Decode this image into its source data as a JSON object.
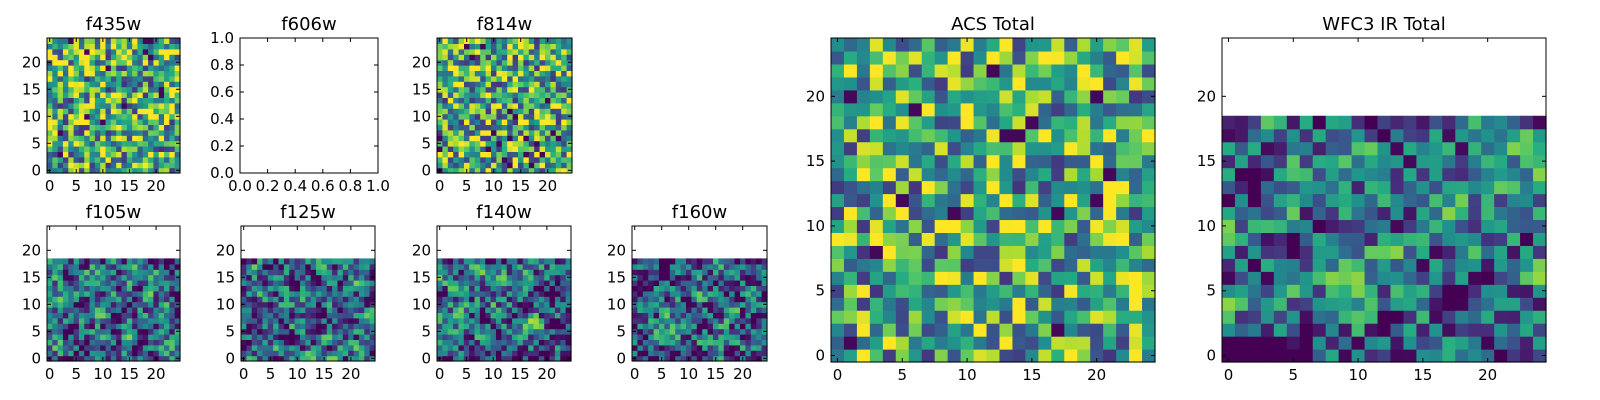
{
  "figure": {
    "colormap": "viridis",
    "panels": [
      {
        "id": "f435w",
        "title": "f435w"
      },
      {
        "id": "f606w",
        "title": "f606w"
      },
      {
        "id": "f814w",
        "title": "f814w"
      },
      {
        "id": "f105w",
        "title": "f105w"
      },
      {
        "id": "f125w",
        "title": "f125w"
      },
      {
        "id": "f140w",
        "title": "f140w"
      },
      {
        "id": "f160w",
        "title": "f160w"
      },
      {
        "id": "acs_total",
        "title": "ACS Total"
      },
      {
        "id": "wfc3ir_total",
        "title": "WFC3 IR Total"
      }
    ]
  },
  "chart_data": [
    {
      "type": "heatmap",
      "title": "f435w",
      "xticks": [
        "0",
        "5",
        "10",
        "15",
        "20"
      ],
      "yticks": [
        "0",
        "5",
        "10",
        "15",
        "20"
      ],
      "xlim": [
        -0.5,
        24.5
      ],
      "ylim": [
        -0.5,
        24.5
      ],
      "rows": 25,
      "cols": 25,
      "filled_rows": 25,
      "pattern": "noise",
      "seed": 11,
      "colormap": "viridis"
    },
    {
      "type": "heatmap",
      "title": "f606w",
      "xticks": [
        "0.0",
        "0.2",
        "0.4",
        "0.6",
        "0.8",
        "1.0"
      ],
      "yticks": [
        "0.0",
        "0.2",
        "0.4",
        "0.6",
        "0.8",
        "1.0"
      ],
      "xlim": [
        0,
        1
      ],
      "ylim": [
        0,
        1
      ],
      "empty": true
    },
    {
      "type": "heatmap",
      "title": "f814w",
      "xticks": [
        "0",
        "5",
        "10",
        "15",
        "20"
      ],
      "yticks": [
        "0",
        "5",
        "10",
        "15",
        "20"
      ],
      "xlim": [
        -0.5,
        24.5
      ],
      "ylim": [
        -0.5,
        24.5
      ],
      "rows": 25,
      "cols": 25,
      "filled_rows": 25,
      "pattern": "noise",
      "seed": 23,
      "colormap": "viridis"
    },
    {
      "type": "heatmap",
      "title": "f105w",
      "xticks": [
        "0",
        "5",
        "10",
        "15",
        "20"
      ],
      "yticks": [
        "0",
        "5",
        "10",
        "15",
        "20"
      ],
      "xlim": [
        -0.5,
        24.5
      ],
      "ylim": [
        -0.5,
        24.5
      ],
      "rows": 25,
      "cols": 25,
      "filled_rows": 19,
      "pattern": "smooth",
      "seed": 37,
      "colormap": "viridis"
    },
    {
      "type": "heatmap",
      "title": "f125w",
      "xticks": [
        "0",
        "5",
        "10",
        "15",
        "20"
      ],
      "yticks": [
        "0",
        "5",
        "10",
        "15",
        "20"
      ],
      "xlim": [
        -0.5,
        24.5
      ],
      "ylim": [
        -0.5,
        24.5
      ],
      "rows": 25,
      "cols": 25,
      "filled_rows": 19,
      "pattern": "smooth",
      "seed": 41,
      "colormap": "viridis"
    },
    {
      "type": "heatmap",
      "title": "f140w",
      "xticks": [
        "0",
        "5",
        "10",
        "15",
        "20"
      ],
      "yticks": [
        "0",
        "5",
        "10",
        "15",
        "20"
      ],
      "xlim": [
        -0.5,
        24.5
      ],
      "ylim": [
        -0.5,
        24.5
      ],
      "rows": 25,
      "cols": 25,
      "filled_rows": 19,
      "pattern": "smooth",
      "seed": 53,
      "colormap": "viridis"
    },
    {
      "type": "heatmap",
      "title": "f160w",
      "xticks": [
        "0",
        "5",
        "10",
        "15",
        "20"
      ],
      "yticks": [
        "0",
        "5",
        "10",
        "15",
        "20"
      ],
      "xlim": [
        -0.5,
        24.5
      ],
      "ylim": [
        -0.5,
        24.5
      ],
      "rows": 25,
      "cols": 25,
      "filled_rows": 19,
      "pattern": "smooth",
      "seed": 67,
      "colormap": "viridis"
    },
    {
      "type": "heatmap",
      "title": "ACS Total",
      "xticks": [
        "0",
        "5",
        "10",
        "15",
        "20"
      ],
      "yticks": [
        "0",
        "5",
        "10",
        "15",
        "20"
      ],
      "xlim": [
        -0.5,
        24.5
      ],
      "ylim": [
        -0.5,
        24.5
      ],
      "rows": 25,
      "cols": 25,
      "filled_rows": 25,
      "pattern": "noise",
      "seed": 79,
      "colormap": "viridis"
    },
    {
      "type": "heatmap",
      "title": "WFC3 IR Total",
      "xticks": [
        "0",
        "5",
        "10",
        "15",
        "20"
      ],
      "yticks": [
        "0",
        "5",
        "10",
        "15",
        "20"
      ],
      "xlim": [
        -0.5,
        24.5
      ],
      "ylim": [
        -0.5,
        24.5
      ],
      "rows": 25,
      "cols": 25,
      "filled_rows": 19,
      "pattern": "smooth",
      "seed": 97,
      "colormap": "viridis"
    }
  ]
}
